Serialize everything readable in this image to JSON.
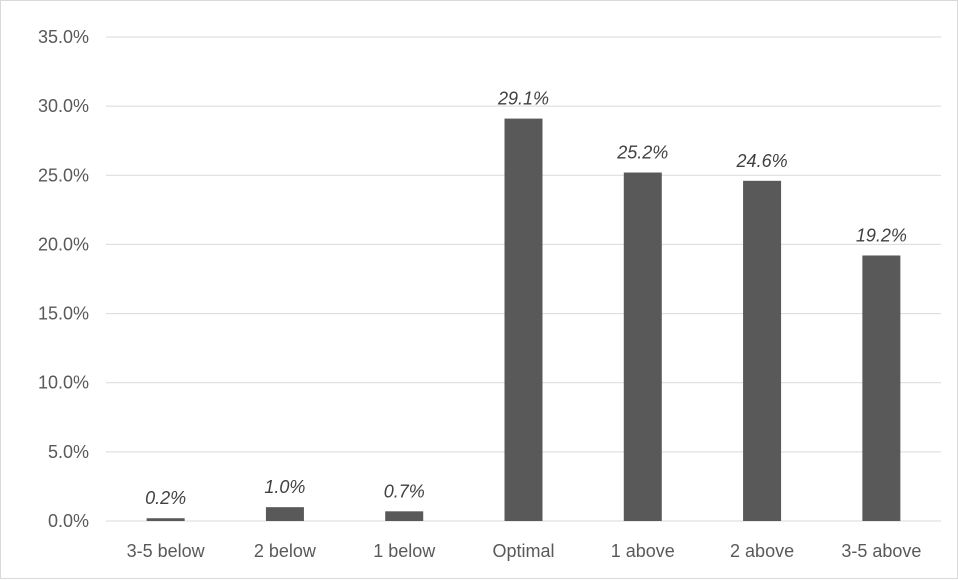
{
  "chart_data": {
    "type": "bar",
    "categories": [
      "3-5 below",
      "2 below",
      "1 below",
      "Optimal",
      "1 above",
      "2 above",
      "3-5 above"
    ],
    "values": [
      0.2,
      1.0,
      0.7,
      29.1,
      25.2,
      24.6,
      19.2
    ],
    "data_labels": [
      "0.2%",
      "1.0%",
      "0.7%",
      "29.1%",
      "25.2%",
      "24.6%",
      "19.2%"
    ],
    "y_ticks": [
      0,
      5,
      10,
      15,
      20,
      25,
      30,
      35
    ],
    "y_tick_labels": [
      "0.0%",
      "5.0%",
      "10.0%",
      "15.0%",
      "20.0%",
      "25.0%",
      "30.0%",
      "35.0%"
    ],
    "ylim": [
      0,
      35
    ],
    "grid": true,
    "legend": "none",
    "bar_color": "#595959",
    "grid_color": "#d9d9d9"
  }
}
